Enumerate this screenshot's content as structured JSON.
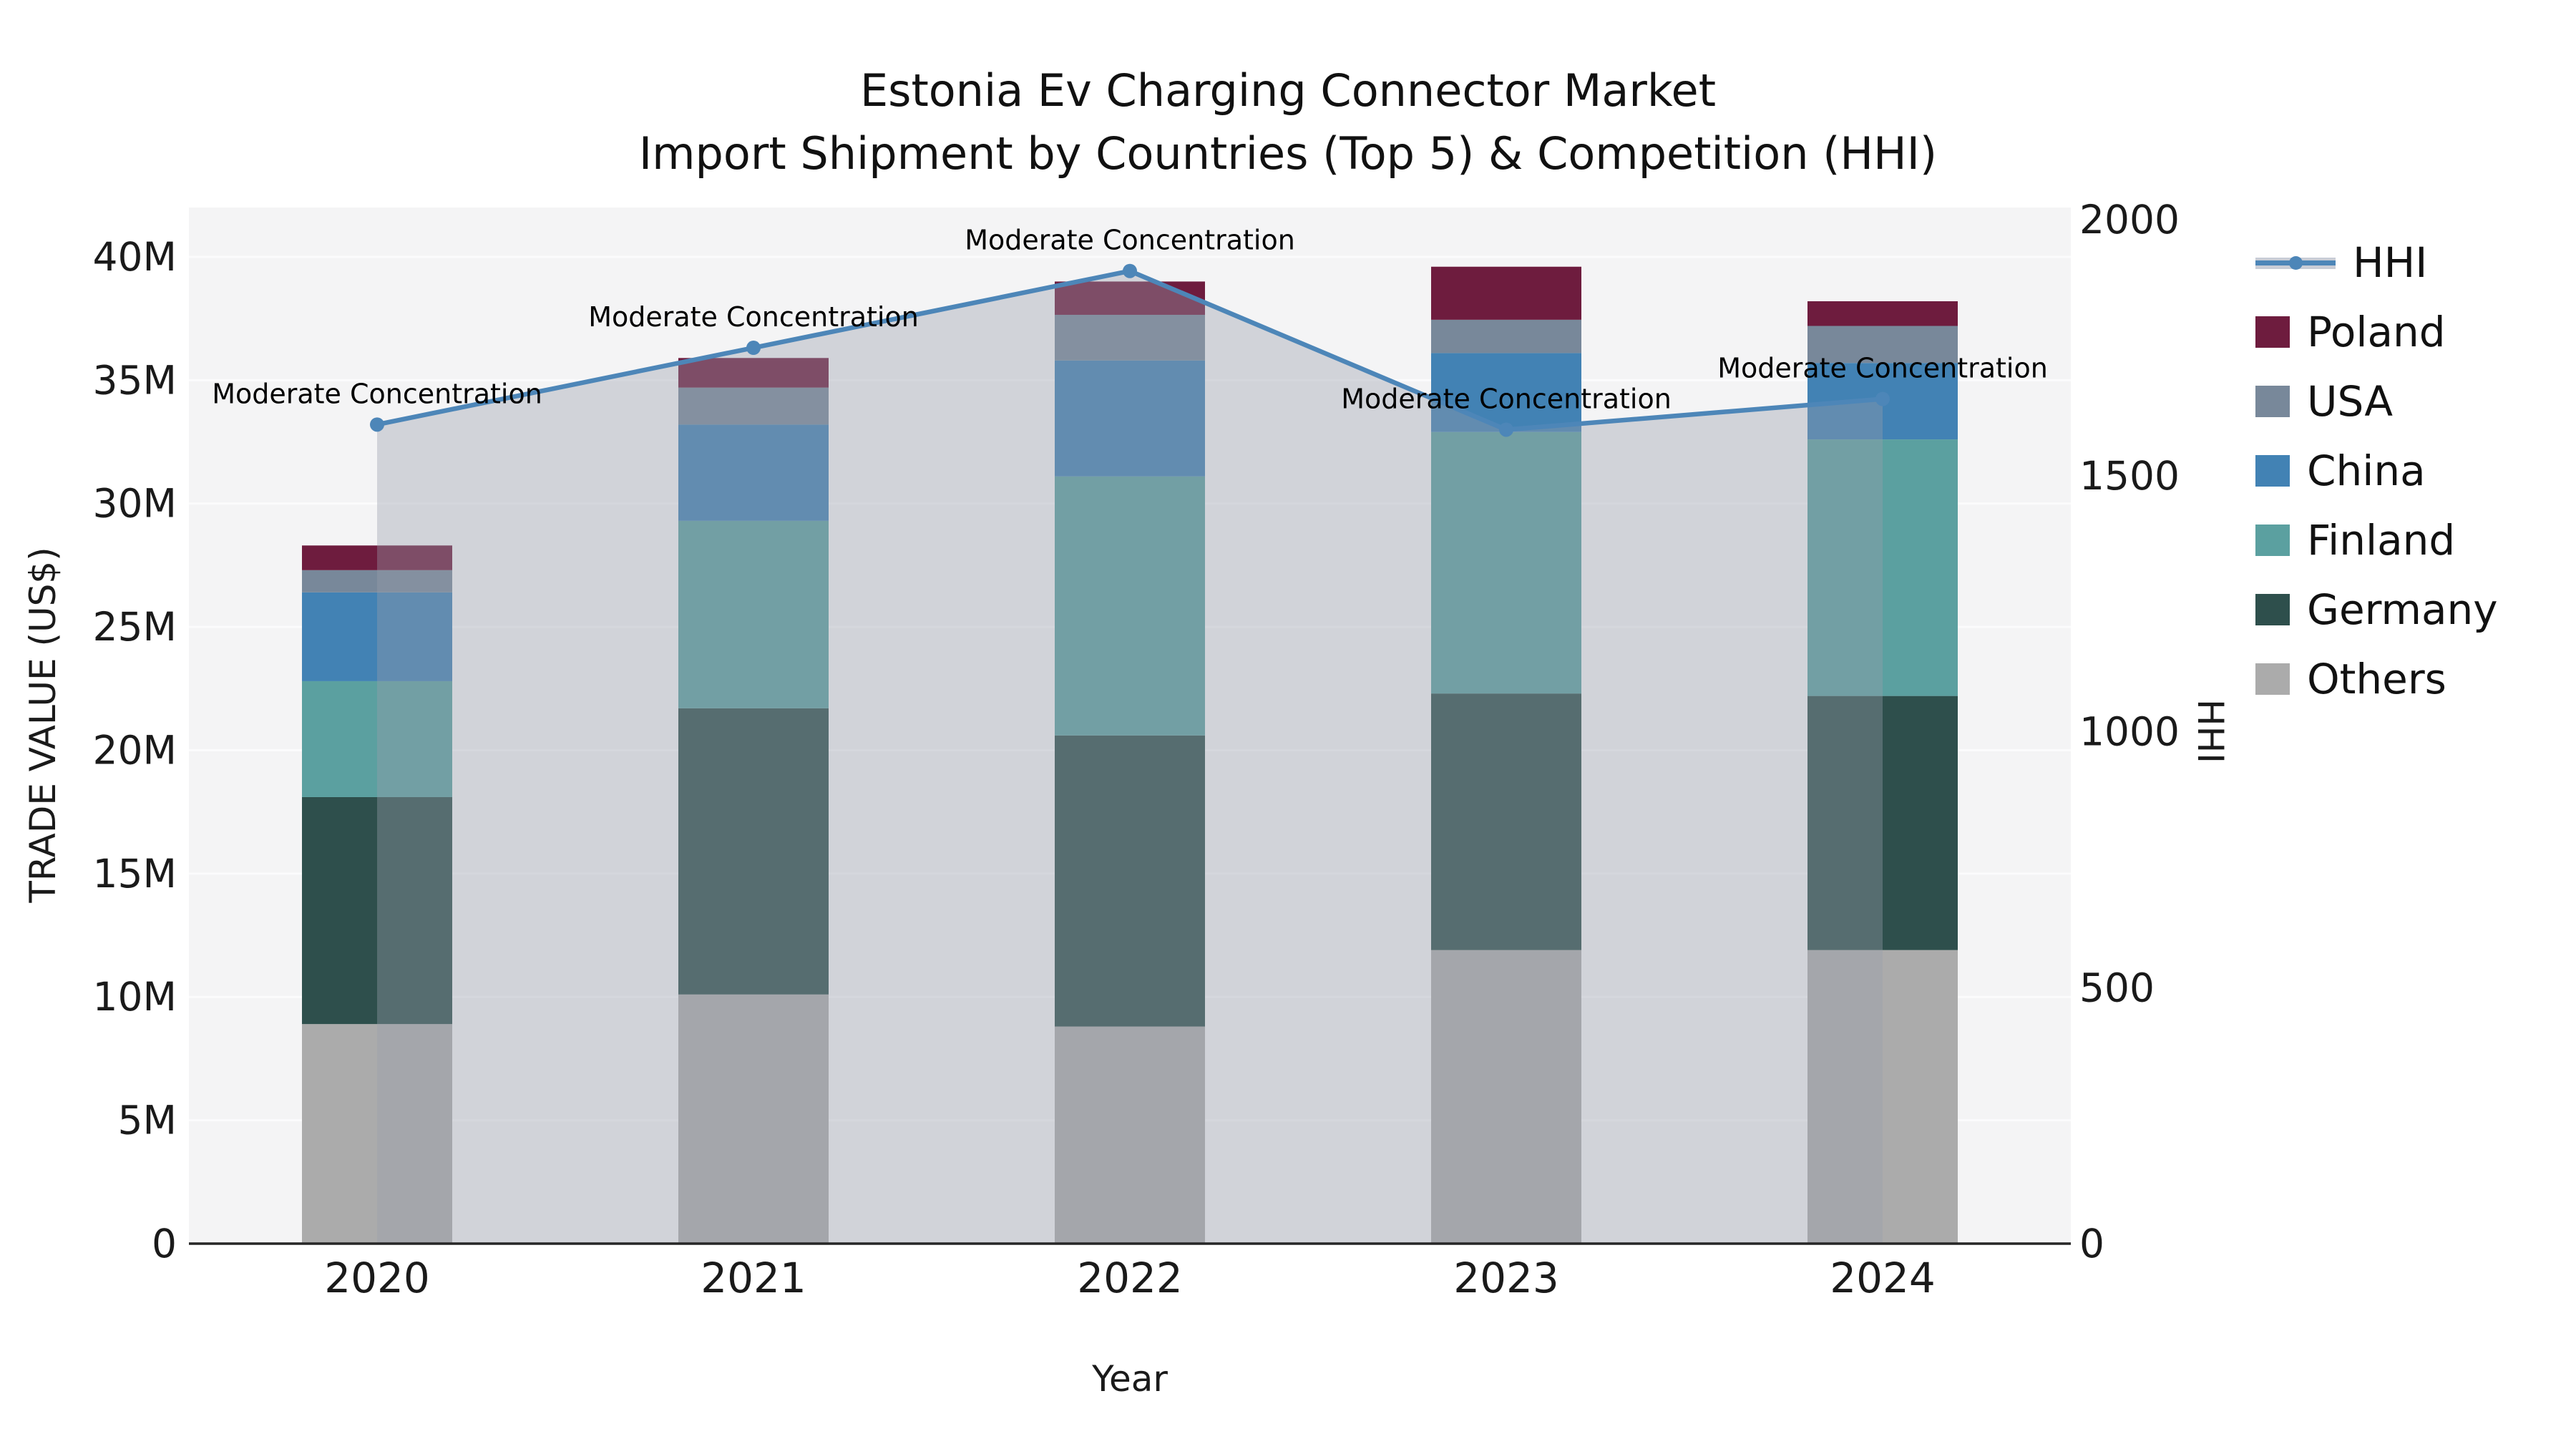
{
  "title": {
    "line1": "Estonia Ev Charging Connector Market",
    "line2": "Import Shipment by Countries (Top 5) & Competition (HHI)"
  },
  "chart_data": {
    "type": "stacked-bar-with-line",
    "title": "Estonia Ev Charging Connector Market Import Shipment by Countries (Top 5) & Competition (HHI)",
    "categories": [
      "2020",
      "2021",
      "2022",
      "2023",
      "2024"
    ],
    "xlabel": "Year",
    "ylabel_left": "TRADE VALUE (US$)",
    "ylabel_right": "HHI",
    "unit_left": "M US$",
    "ylim_left_musd": [
      0,
      42
    ],
    "ylim_right": [
      0,
      2024
    ],
    "grid": true,
    "plot_bg": "#f4f4f5",
    "gridline_color": "#fbfbfc",
    "axis_line_color": "#262626",
    "yticks_left": [
      {
        "value": 0,
        "label": "0"
      },
      {
        "value": 5,
        "label": "5M"
      },
      {
        "value": 10,
        "label": "10M"
      },
      {
        "value": 15,
        "label": "15M"
      },
      {
        "value": 20,
        "label": "20M"
      },
      {
        "value": 25,
        "label": "25M"
      },
      {
        "value": 30,
        "label": "30M"
      },
      {
        "value": 35,
        "label": "35M"
      },
      {
        "value": 40,
        "label": "40M"
      }
    ],
    "yticks_right": [
      {
        "value": 0,
        "label": "0"
      },
      {
        "value": 500,
        "label": "500"
      },
      {
        "value": 1000,
        "label": "1000"
      },
      {
        "value": 1500,
        "label": "1500"
      },
      {
        "value": 2000,
        "label": "2000"
      }
    ],
    "series": [
      {
        "name": "Others",
        "color": "#ababab",
        "values_musd": [
          8.9,
          10.1,
          8.8,
          11.9,
          11.9
        ]
      },
      {
        "name": "Germany",
        "color": "#2e4f4c",
        "values_musd": [
          9.2,
          11.6,
          11.8,
          10.4,
          10.3
        ]
      },
      {
        "name": "Finland",
        "color": "#5ba0a0",
        "values_musd": [
          4.7,
          7.6,
          10.5,
          10.6,
          10.4
        ]
      },
      {
        "name": "China",
        "color": "#4282b4",
        "values_musd": [
          3.6,
          3.9,
          4.7,
          3.2,
          3.1
        ]
      },
      {
        "name": "USA",
        "color": "#78889a",
        "values_musd": [
          0.9,
          1.5,
          1.85,
          1.35,
          1.5
        ]
      },
      {
        "name": "Poland",
        "color": "#6e1c3e",
        "values_musd": [
          1.0,
          1.2,
          1.35,
          2.15,
          1.0
        ]
      }
    ],
    "totals_musd": [
      28.3,
      35.9,
      39.0,
      39.6,
      38.2
    ],
    "line_series": {
      "name": "HHI",
      "color": "#4d86b8",
      "marker": "circle",
      "area_fill": "rgba(152,158,172,0.38)",
      "values": [
        1600,
        1750,
        1900,
        1590,
        1650
      ]
    },
    "annotations": [
      {
        "category": "2020",
        "text": "Moderate Concentration"
      },
      {
        "category": "2021",
        "text": "Moderate Concentration"
      },
      {
        "category": "2022",
        "text": "Moderate Concentration"
      },
      {
        "category": "2023",
        "text": "Moderate Concentration"
      },
      {
        "category": "2024",
        "text": "Moderate Concentration"
      }
    ],
    "legend_position": "right-outside-top"
  },
  "legend": {
    "items": [
      {
        "label": "HHI",
        "kind": "line",
        "line_color": "#4d86b8",
        "band_color": "#c9cdd6"
      },
      {
        "label": "Poland",
        "kind": "patch",
        "color": "#6e1c3e"
      },
      {
        "label": "USA",
        "kind": "patch",
        "color": "#78889a"
      },
      {
        "label": "China",
        "kind": "patch",
        "color": "#4282b4"
      },
      {
        "label": "Finland",
        "kind": "patch",
        "color": "#5ba0a0"
      },
      {
        "label": "Germany",
        "kind": "patch",
        "color": "#2e4f4c"
      },
      {
        "label": "Others",
        "kind": "patch",
        "color": "#ababab"
      }
    ]
  }
}
